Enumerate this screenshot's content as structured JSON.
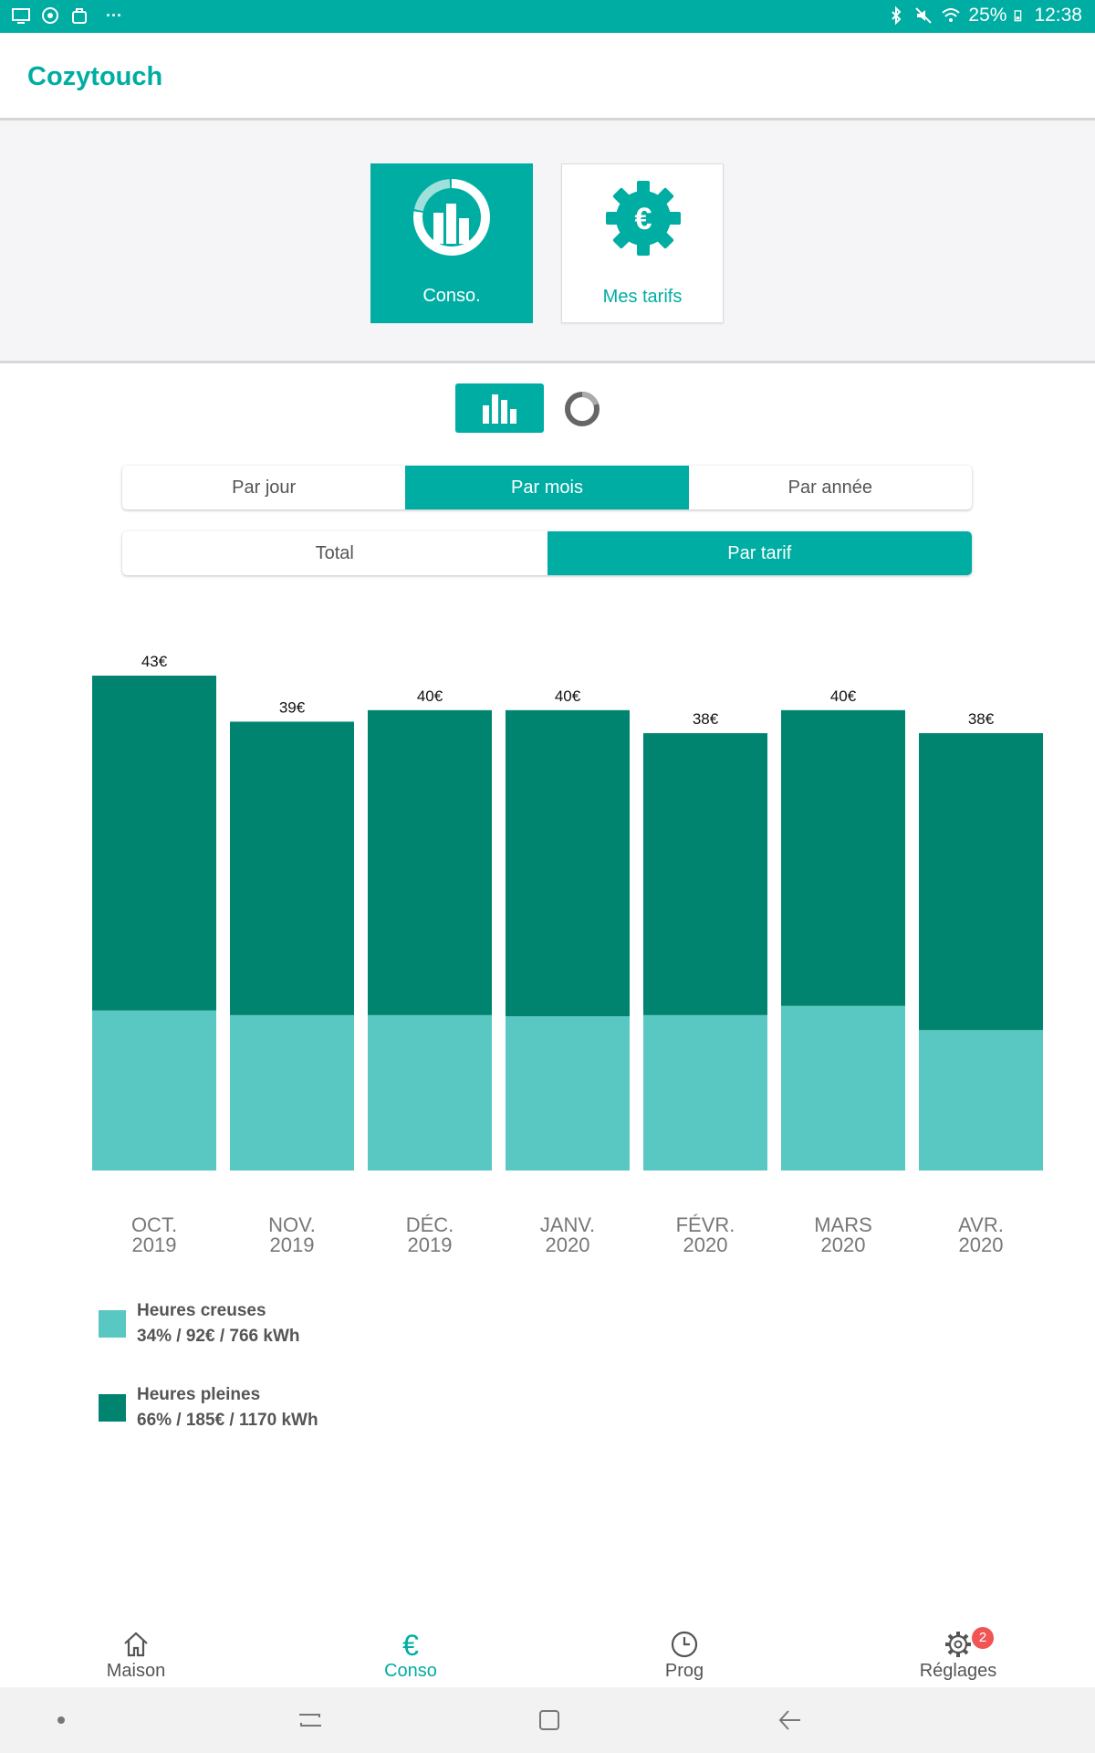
{
  "status_bar": {
    "battery": "25%",
    "time": "12:38",
    "more": "···",
    "left_icons": [
      "screen-icon",
      "sync-icon",
      "bag-icon"
    ],
    "right_icons": [
      "bluetooth-icon",
      "mute-icon",
      "wifi-icon",
      "battery-icon"
    ]
  },
  "app": {
    "title": "Cozytouch"
  },
  "modes": [
    {
      "label": "Conso.",
      "icon": "consumption-chart-icon",
      "active": true
    },
    {
      "label": "Mes tarifs",
      "icon": "euro-gear-icon",
      "active": false
    }
  ],
  "view_toggle": [
    {
      "icon": "bar-chart-icon",
      "active": true
    },
    {
      "icon": "donut-chart-icon",
      "active": false
    }
  ],
  "period_tabs": [
    {
      "label": "Par jour",
      "active": false
    },
    {
      "label": "Par mois",
      "active": true
    },
    {
      "label": "Par année",
      "active": false
    }
  ],
  "mode_tabs": [
    {
      "label": "Total",
      "active": false
    },
    {
      "label": "Par tarif",
      "active": true
    }
  ],
  "chart_data": {
    "type": "bar",
    "stacked": true,
    "categories": [
      [
        "OCT.",
        "2019"
      ],
      [
        "NOV.",
        "2019"
      ],
      [
        "DÉC.",
        "2019"
      ],
      [
        "JANV.",
        "2020"
      ],
      [
        "FÉVR.",
        "2020"
      ],
      [
        "MARS",
        "2020"
      ],
      [
        "AVR.",
        "2020"
      ]
    ],
    "totals": [
      43,
      39,
      40,
      40,
      38,
      40,
      38
    ],
    "total_labels": [
      "43€",
      "39€",
      "40€",
      "40€",
      "38€",
      "40€",
      "38€"
    ],
    "series": [
      {
        "name": "Heures creuses",
        "values": [
          13.9,
          13.5,
          13.5,
          13.4,
          13.5,
          14.3,
          12.2
        ],
        "color": "#59c8c3"
      },
      {
        "name": "Heures pleines",
        "values": [
          29.1,
          25.5,
          26.5,
          26.6,
          24.5,
          25.7,
          25.8
        ],
        "color": "#00846f"
      }
    ],
    "ylim": [
      0,
      43
    ],
    "grid": false
  },
  "legend": [
    {
      "name": "Heures creuses",
      "stats": "34% / 92€ / 766 kWh",
      "color": "#59c8c3"
    },
    {
      "name": "Heures pleines",
      "stats": "66% / 185€ / 1170 kWh",
      "color": "#00846f"
    }
  ],
  "bottom_nav": [
    {
      "label": "Maison",
      "icon": "home-icon",
      "active": false
    },
    {
      "label": "Conso",
      "icon": "euro-icon",
      "active": true
    },
    {
      "label": "Prog",
      "icon": "clock-icon",
      "active": false
    },
    {
      "label": "Réglages",
      "icon": "gear-icon",
      "active": false,
      "badge": "2"
    }
  ],
  "system_nav": [
    "dot-icon",
    "recents-icon",
    "home-square-icon",
    "back-icon"
  ],
  "colors": {
    "accent": "#00ada3",
    "peak": "#00846f",
    "offpeak": "#59c8c3",
    "badge": "#f05454"
  }
}
